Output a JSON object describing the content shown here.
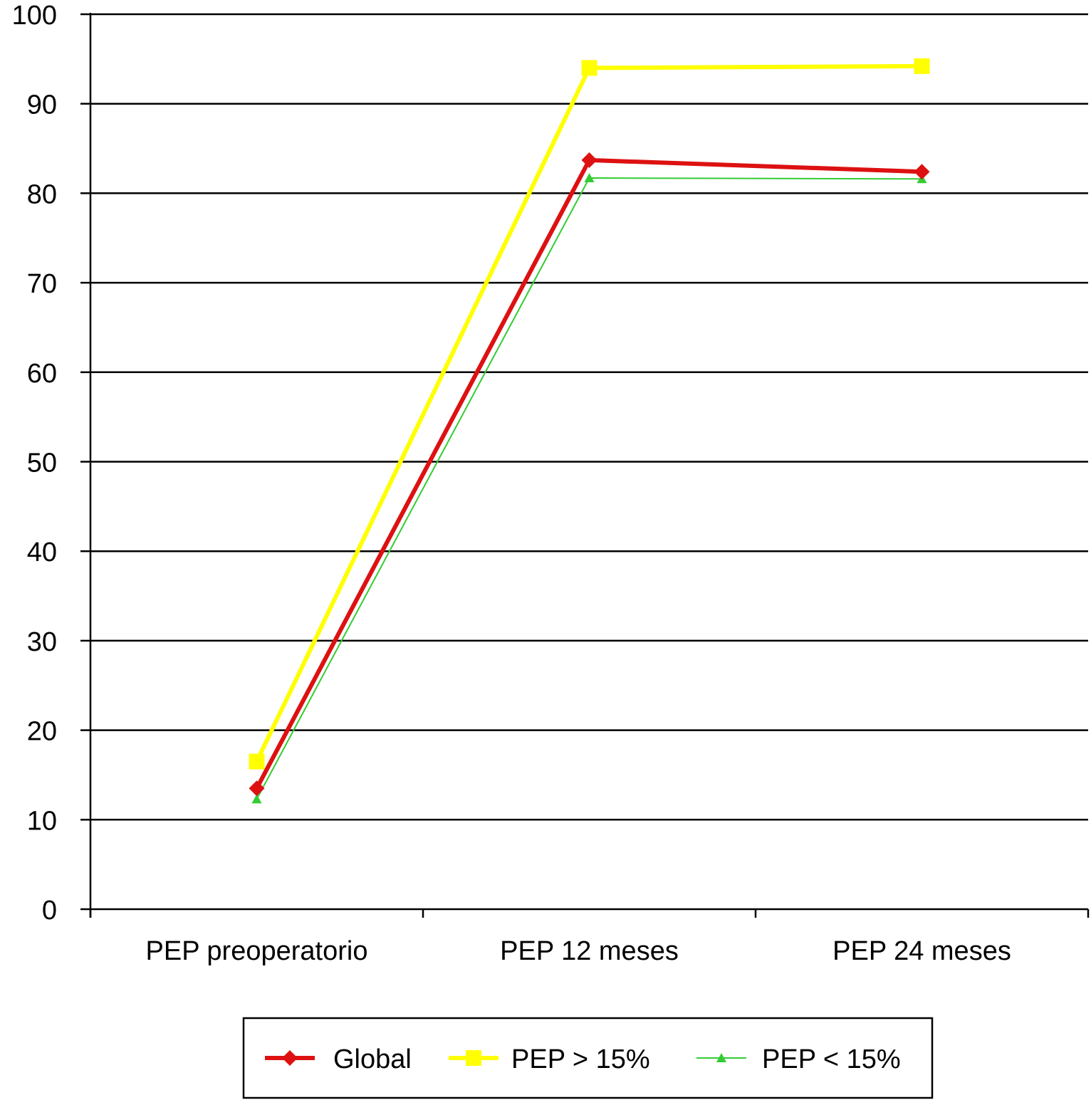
{
  "chart_data": {
    "type": "line",
    "categories": [
      "PEP preoperatorio",
      "PEP 12 meses",
      "PEP 24 meses"
    ],
    "ylim": [
      0,
      100
    ],
    "yticks": [
      0,
      10,
      20,
      30,
      40,
      50,
      60,
      70,
      80,
      90,
      100
    ],
    "grid": true,
    "legend_position": "bottom",
    "series": [
      {
        "name": "PEP > 15%",
        "values": [
          16.5,
          94.0,
          94.2
        ],
        "color": "#ffff00",
        "marker": "square"
      },
      {
        "name": "PEP < 15%",
        "values": [
          12.3,
          81.7,
          81.6
        ],
        "color": "#33cc33",
        "marker": "triangle"
      },
      {
        "name": "Global",
        "values": [
          13.5,
          83.7,
          82.4
        ],
        "color": "#dd1111",
        "marker": "diamond"
      }
    ],
    "legend_order": [
      "Global",
      "PEP > 15%",
      "PEP < 15%"
    ]
  }
}
